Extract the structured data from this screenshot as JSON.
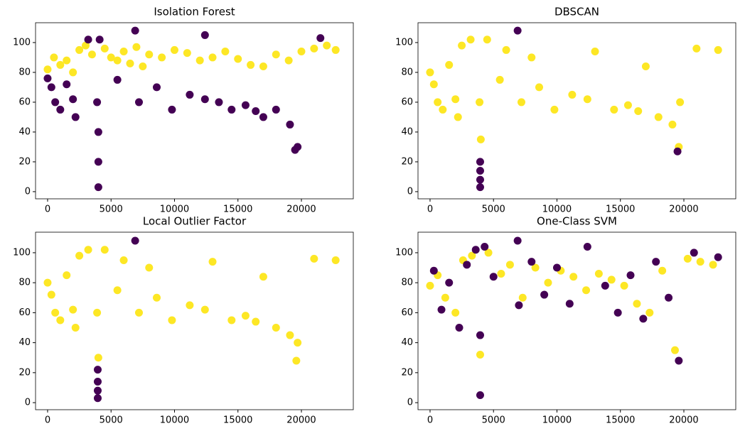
{
  "chart_data": [
    {
      "type": "scatter",
      "title": "Isolation Forest",
      "xlim": [
        -950,
        24090
      ],
      "ylim": [
        -4.8,
        113.3
      ],
      "xticks": [
        0,
        5000,
        10000,
        15000,
        20000
      ],
      "yticks": [
        0,
        20,
        40,
        60,
        80,
        100
      ],
      "series": [
        {
          "color": "#fde725",
          "x": [
            0,
            500,
            1000,
            1500,
            2000,
            2500,
            3000,
            3500,
            4500,
            5000,
            5500,
            6000,
            6500,
            7000,
            7500,
            8000,
            9000,
            10000,
            11000,
            12000,
            13000,
            14000,
            15000,
            16000,
            17000,
            18000,
            19000,
            20000,
            21000,
            22000,
            22700
          ],
          "y": [
            82,
            90,
            85,
            88,
            80,
            95,
            98,
            92,
            96,
            90,
            88,
            94,
            86,
            97,
            84,
            92,
            90,
            95,
            93,
            88,
            90,
            94,
            89,
            85,
            84,
            92,
            88,
            94,
            96,
            98,
            95
          ]
        },
        {
          "color": "#440154",
          "x": [
            0,
            300,
            600,
            1000,
            1500,
            2000,
            2200,
            3200,
            3900,
            4000,
            4000,
            4000,
            4100,
            5500,
            6900,
            7200,
            8600,
            9800,
            11200,
            12400,
            12400,
            13500,
            14500,
            15600,
            16400,
            17000,
            18000,
            19100,
            19500,
            19700,
            21500
          ],
          "y": [
            76,
            70,
            60,
            55,
            72,
            62,
            50,
            102,
            60,
            40,
            20,
            3,
            102,
            75,
            108,
            60,
            70,
            55,
            65,
            105,
            62,
            60,
            55,
            58,
            54,
            50,
            55,
            45,
            28,
            30,
            103
          ]
        }
      ]
    },
    {
      "type": "scatter",
      "title": "DBSCAN",
      "xlim": [
        -950,
        24090
      ],
      "ylim": [
        -4.8,
        113.3
      ],
      "xticks": [
        0,
        5000,
        10000,
        15000,
        20000
      ],
      "yticks": [
        0,
        20,
        40,
        60,
        80,
        100
      ],
      "series": [
        {
          "color": "#fde725",
          "x": [
            0,
            300,
            600,
            1000,
            1500,
            2000,
            2200,
            2500,
            3200,
            3900,
            4000,
            4500,
            5500,
            6000,
            7200,
            8000,
            8600,
            9800,
            11200,
            12400,
            13000,
            14500,
            15600,
            16400,
            17000,
            18000,
            19100,
            19600,
            19700,
            21000,
            22700
          ],
          "y": [
            80,
            72,
            60,
            55,
            85,
            62,
            50,
            98,
            102,
            60,
            35,
            102,
            75,
            95,
            60,
            90,
            70,
            55,
            65,
            62,
            94,
            55,
            58,
            54,
            84,
            50,
            45,
            30,
            60,
            96,
            95
          ]
        },
        {
          "color": "#440154",
          "x": [
            3950,
            3950,
            3950,
            3950,
            6900,
            19500
          ],
          "y": [
            3,
            8,
            14,
            20,
            108,
            27
          ]
        }
      ]
    },
    {
      "type": "scatter",
      "title": "Local Outlier Factor",
      "xlim": [
        -950,
        24090
      ],
      "ylim": [
        -4.7,
        113.7
      ],
      "xticks": [
        0,
        5000,
        10000,
        15000,
        20000
      ],
      "yticks": [
        0,
        20,
        40,
        60,
        80,
        100
      ],
      "series": [
        {
          "color": "#fde725",
          "x": [
            0,
            300,
            600,
            1000,
            1500,
            2000,
            2200,
            2500,
            3200,
            3900,
            4000,
            4500,
            5500,
            6000,
            7200,
            8000,
            8600,
            9800,
            11200,
            12400,
            13000,
            14500,
            15600,
            16400,
            17000,
            18000,
            19100,
            19600,
            19700,
            21000,
            22700
          ],
          "y": [
            80,
            72,
            60,
            55,
            85,
            62,
            50,
            98,
            102,
            60,
            30,
            102,
            75,
            95,
            60,
            90,
            70,
            55,
            65,
            62,
            94,
            55,
            58,
            54,
            84,
            50,
            45,
            28,
            40,
            96,
            95
          ]
        },
        {
          "color": "#440154",
          "x": [
            3950,
            3950,
            3950,
            3950,
            6900
          ],
          "y": [
            3,
            8,
            14,
            22,
            108
          ]
        }
      ]
    },
    {
      "type": "scatter",
      "title": "One-Class SVM",
      "xlim": [
        -950,
        24090
      ],
      "ylim": [
        -4.7,
        113.7
      ],
      "xticks": [
        0,
        5000,
        10000,
        15000,
        20000
      ],
      "yticks": [
        0,
        20,
        40,
        60,
        80,
        100
      ],
      "series": [
        {
          "color": "#fde725",
          "x": [
            0,
            600,
            1200,
            2000,
            2600,
            3300,
            3950,
            4600,
            5600,
            6300,
            7300,
            8300,
            9300,
            10300,
            11300,
            12300,
            13300,
            14300,
            15300,
            16300,
            17300,
            18300,
            19300,
            20300,
            21300,
            22300
          ],
          "y": [
            78,
            85,
            70,
            60,
            95,
            98,
            32,
            100,
            86,
            92,
            70,
            90,
            80,
            88,
            84,
            75,
            86,
            82,
            78,
            66,
            60,
            88,
            35,
            96,
            94,
            92
          ]
        },
        {
          "color": "#440154",
          "x": [
            300,
            900,
            1500,
            2300,
            2900,
            3600,
            3950,
            3950,
            4300,
            5000,
            6900,
            7000,
            8000,
            9000,
            10000,
            11000,
            12400,
            13800,
            14800,
            15800,
            16800,
            17800,
            18800,
            19600,
            20800,
            22700
          ],
          "y": [
            88,
            62,
            80,
            50,
            92,
            102,
            5,
            45,
            104,
            84,
            108,
            65,
            94,
            72,
            90,
            66,
            104,
            78,
            60,
            85,
            56,
            94,
            70,
            28,
            100,
            97
          ]
        }
      ]
    }
  ]
}
